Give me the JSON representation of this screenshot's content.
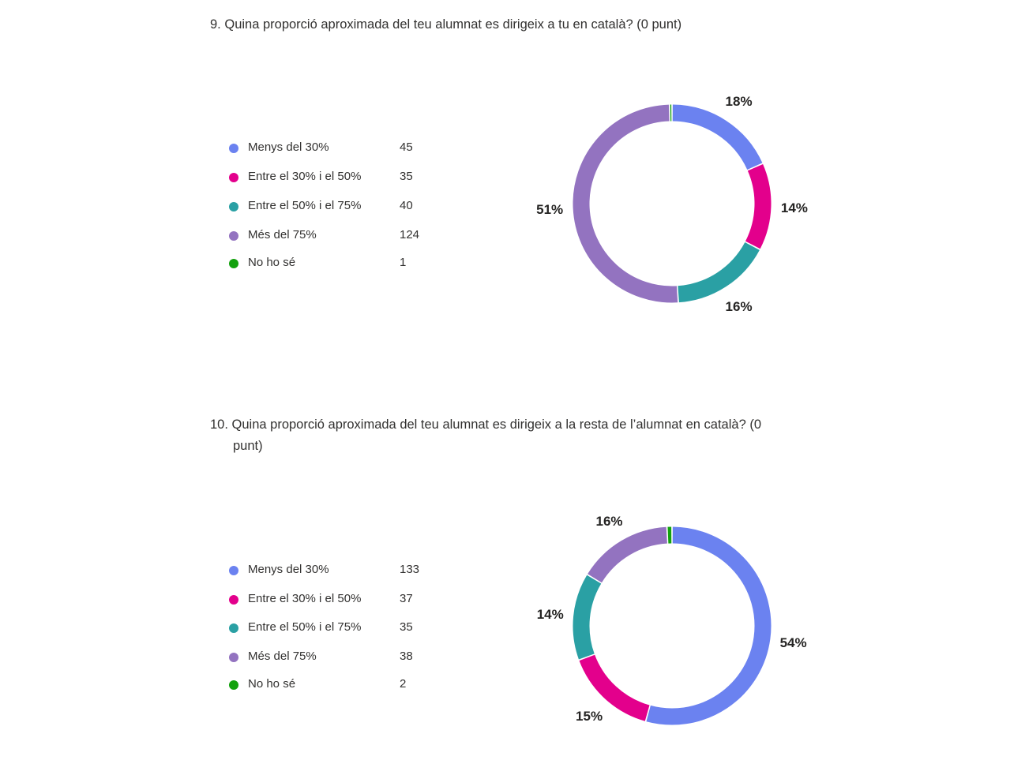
{
  "chart_data": [
    {
      "type": "pie",
      "title_number": "9.",
      "title": "Quina proporció aproximada del teu alumnat es dirigeix a tu en català? (0 punt)",
      "title_cont": "",
      "categories": [
        "Menys del 30%",
        "Entre el 30% i el 50%",
        "Entre el 50% i el 75%",
        "Més del 75%",
        "No ho sé"
      ],
      "values": [
        45,
        35,
        40,
        124,
        1
      ],
      "colors": [
        "#6b82f0",
        "#e3008c",
        "#2aa0a4",
        "#9373c0",
        "#13a10e"
      ],
      "percent_labels": [
        "18%",
        "14%",
        "16%",
        "51%",
        ""
      ]
    },
    {
      "type": "pie",
      "title_number": "10.",
      "title": "Quina proporció aproximada del teu alumnat es dirigeix a la resta de l’alumnat en català? (0",
      "title_cont": "punt)",
      "categories": [
        "Menys del 30%",
        "Entre el 30% i el 50%",
        "Entre el 50% i el 75%",
        "Més del 75%",
        "No ho sé"
      ],
      "values": [
        133,
        37,
        35,
        38,
        2
      ],
      "colors": [
        "#6b82f0",
        "#e3008c",
        "#2aa0a4",
        "#9373c0",
        "#13a10e"
      ],
      "percent_labels": [
        "54%",
        "15%",
        "14%",
        "16%",
        ""
      ]
    }
  ]
}
